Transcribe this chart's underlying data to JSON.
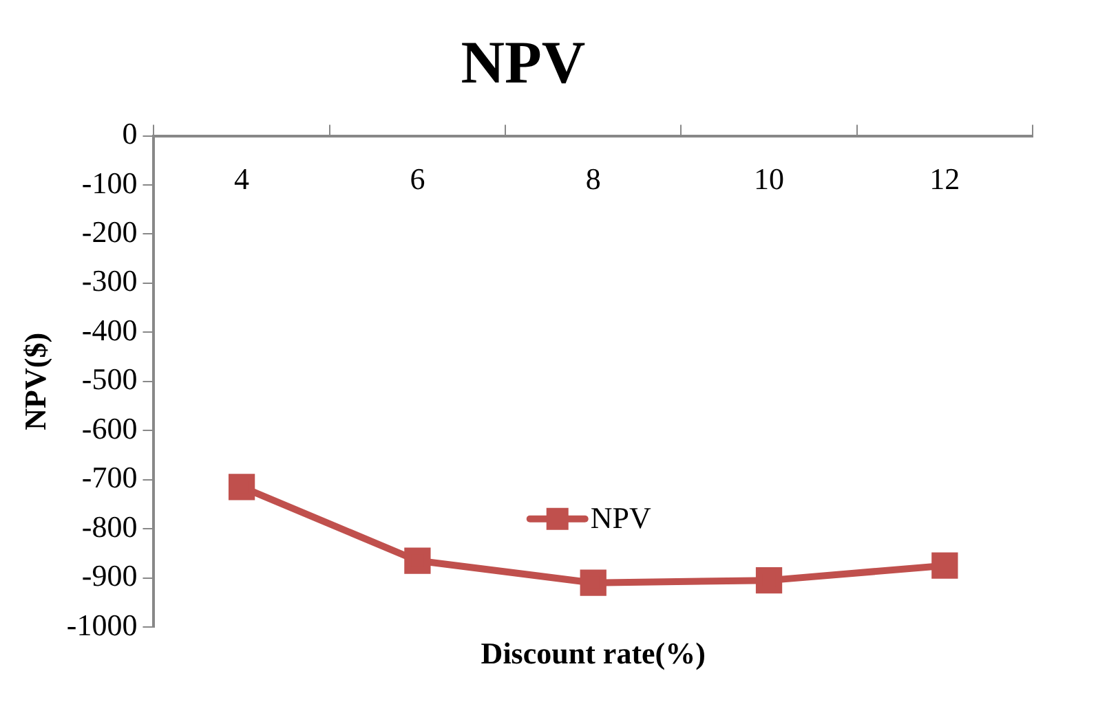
{
  "chart_data": {
    "type": "line",
    "title": "NPV",
    "xlabel": "Discount rate(%)",
    "ylabel": "NPV($)",
    "categories": [
      "4",
      "6",
      "8",
      "10",
      "12"
    ],
    "series": [
      {
        "name": "NPV",
        "color": "#c0504d",
        "values": [
          -715,
          -865,
          -910,
          -905,
          -875
        ]
      }
    ],
    "ylim": [
      -1000,
      0
    ],
    "yticks": [
      0,
      -100,
      -200,
      -300,
      -400,
      -500,
      -600,
      -700,
      -800,
      -900,
      -1000
    ],
    "grid": false,
    "legend": "center",
    "marker": "square",
    "line_style": "solid"
  }
}
